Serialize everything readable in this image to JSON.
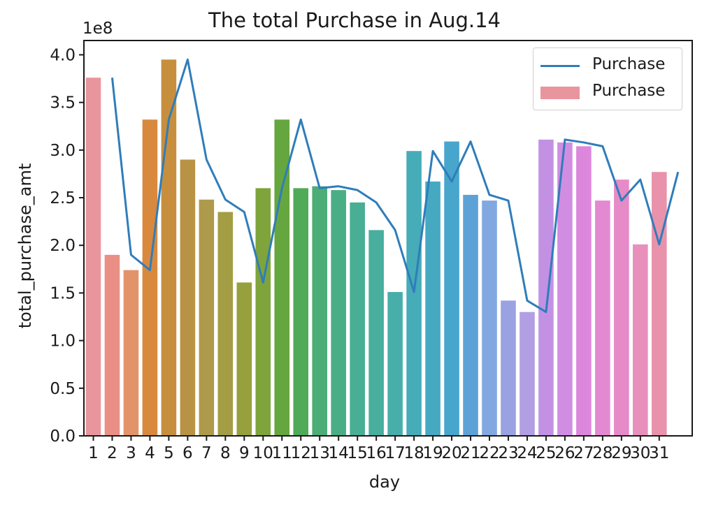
{
  "chart_data": {
    "type": "bar",
    "title": "The total Purchase in Aug.14",
    "xlabel": "day",
    "ylabel": "total_purchase_amt",
    "y_offset_label": "1e8",
    "ylim": [
      0,
      4.15
    ],
    "yticks": [
      0.0,
      0.5,
      1.0,
      1.5,
      2.0,
      2.5,
      3.0,
      3.5,
      4.0
    ],
    "ytick_labels": [
      "0.0",
      "0.5",
      "1.0",
      "1.5",
      "2.0",
      "2.5",
      "3.0",
      "3.5",
      "4.0"
    ],
    "categories": [
      "1",
      "2",
      "3",
      "4",
      "5",
      "6",
      "7",
      "8",
      "9",
      "10",
      "11",
      "12",
      "13",
      "14",
      "15",
      "16",
      "17",
      "18",
      "19",
      "20",
      "21",
      "22",
      "23",
      "24",
      "25",
      "26",
      "27",
      "28",
      "29",
      "30",
      "31"
    ],
    "grid": false,
    "legend_position": "top-right",
    "series": [
      {
        "name": "Purchase",
        "kind": "bar",
        "values": [
          3.76,
          1.9,
          1.74,
          3.32,
          3.95,
          2.9,
          2.48,
          2.35,
          1.61,
          2.6,
          3.32,
          2.6,
          2.62,
          2.58,
          2.45,
          2.16,
          1.51,
          2.99,
          2.67,
          3.09,
          2.53,
          2.47,
          1.42,
          1.3,
          3.11,
          3.08,
          3.04,
          2.47,
          2.69,
          2.01,
          2.77
        ],
        "colors": [
          "#e9959d",
          "#e98f85",
          "#e3936a",
          "#d8893e",
          "#c78f3d",
          "#b89345",
          "#ae9a4b",
          "#a39d44",
          "#96a03d",
          "#7ea43b",
          "#66a63e",
          "#4fab58",
          "#4cad76",
          "#49ae86",
          "#48ae94",
          "#48ae9e",
          "#48aeaa",
          "#46acb8",
          "#46a9c2",
          "#48a5cc",
          "#5ca2d7",
          "#81a8e0",
          "#9aa2e2",
          "#b29ee2",
          "#c391e4",
          "#d18de2",
          "#dc87dc",
          "#e289d2",
          "#e68ac8",
          "#e890bb",
          "#e893ab"
        ]
      },
      {
        "name": "Purchase",
        "kind": "line",
        "color": "#2f7dba",
        "x_offset": 1,
        "values": [
          3.76,
          1.9,
          1.74,
          3.32,
          3.95,
          2.9,
          2.48,
          2.35,
          1.61,
          2.6,
          3.32,
          2.6,
          2.62,
          2.58,
          2.45,
          2.16,
          1.51,
          2.99,
          2.67,
          3.09,
          2.53,
          2.47,
          1.42,
          1.3,
          3.11,
          3.08,
          3.04,
          2.47,
          2.69,
          2.01,
          2.77
        ]
      }
    ]
  }
}
